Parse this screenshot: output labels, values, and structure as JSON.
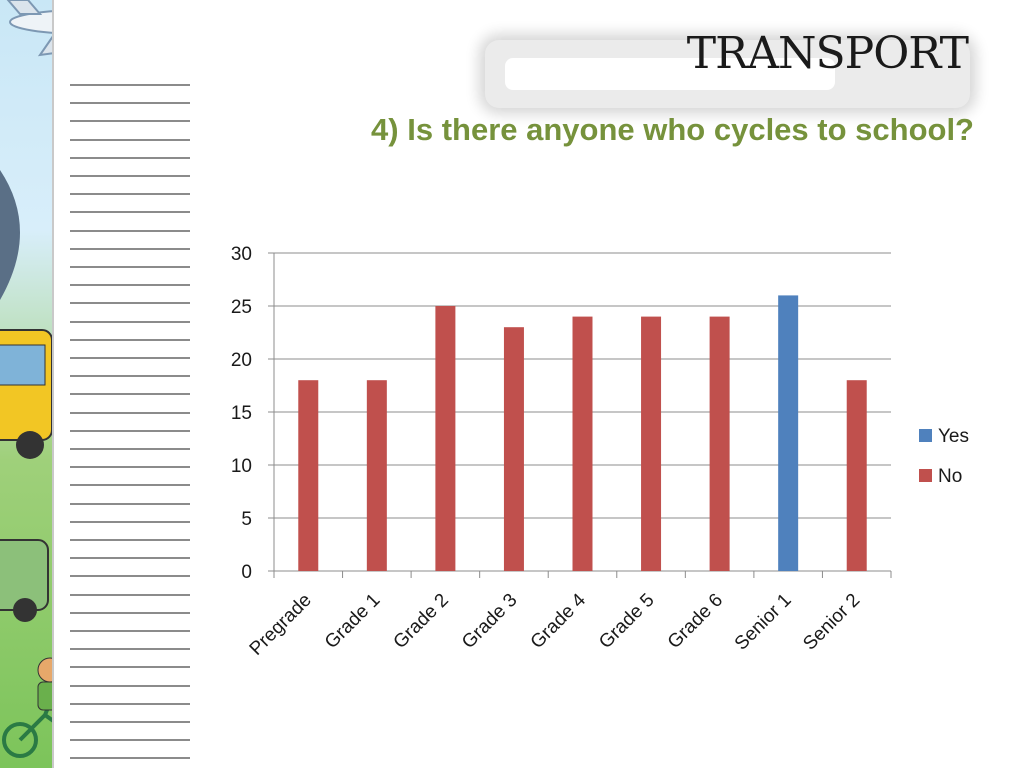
{
  "header": {
    "title": "TRANSPORT",
    "subtitle": "4) Is there anyone who cycles to school?"
  },
  "colors": {
    "yes": "#4f81bd",
    "no": "#c0504d",
    "subtitle": "#76923c",
    "grid": "#8c8c8c"
  },
  "chart_data": {
    "type": "bar",
    "categories": [
      "Pregrade",
      "Grade 1",
      "Grade 2",
      "Grade 3",
      "Grade 4",
      "Grade 5",
      "Grade 6",
      "Senior 1",
      "Senior 2"
    ],
    "series": [
      {
        "name": "Yes",
        "values": [
          0,
          0,
          0,
          0,
          0,
          0,
          0,
          26,
          0
        ]
      },
      {
        "name": "No",
        "values": [
          18,
          18,
          25,
          23,
          24,
          24,
          24,
          0,
          18
        ]
      }
    ],
    "ylim": [
      0,
      30
    ],
    "yticks": [
      0,
      5,
      10,
      15,
      20,
      25,
      30
    ],
    "grid": true,
    "legend": "right"
  }
}
